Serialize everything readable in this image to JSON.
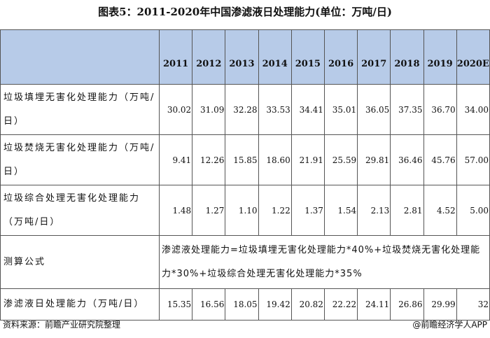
{
  "title": "图表5：2011-2020年中国渗滤液日处理能力(单位：万吨/日)",
  "table": {
    "header": [
      "2011",
      "2012",
      "2013",
      "2014",
      "2015",
      "2016",
      "2017",
      "2018",
      "2019",
      "2020E"
    ],
    "rows": [
      {
        "label": "垃圾填埋无害化处理能力（万吨/日）",
        "values": [
          "30.02",
          "31.09",
          "32.28",
          "33.53",
          "34.41",
          "35.01",
          "36.05",
          "37.35",
          "36.70",
          "34.00"
        ]
      },
      {
        "label": "垃圾焚烧无害化处理能力（万吨/日）",
        "values": [
          "9.41",
          "12.26",
          "15.85",
          "18.60",
          "21.91",
          "25.59",
          "29.81",
          "36.46",
          "45.76",
          "57.00"
        ]
      },
      {
        "label": "垃圾综合处理无害化处理能力（万吨/日）",
        "values": [
          "1.48",
          "1.27",
          "1.10",
          "1.22",
          "1.37",
          "1.54",
          "2.13",
          "2.81",
          "4.52",
          "5.00"
        ]
      }
    ],
    "formula": {
      "label": "测算公式",
      "text": "渗滤液处理能力=垃圾填埋无害化处理能力*40%+垃圾焚烧无害化处理能力*30%+垃圾综合处理无害化处理能力*35%"
    },
    "total": {
      "label": "渗滤液日处理能力（万吨/日）",
      "values": [
        "15.35",
        "16.56",
        "18.05",
        "19.42",
        "20.82",
        "22.22",
        "24.11",
        "26.86",
        "29.99",
        "32"
      ]
    }
  },
  "source": "资料来源：前瞻产业研究院整理",
  "brand": "@前瞻经济学人APP"
}
